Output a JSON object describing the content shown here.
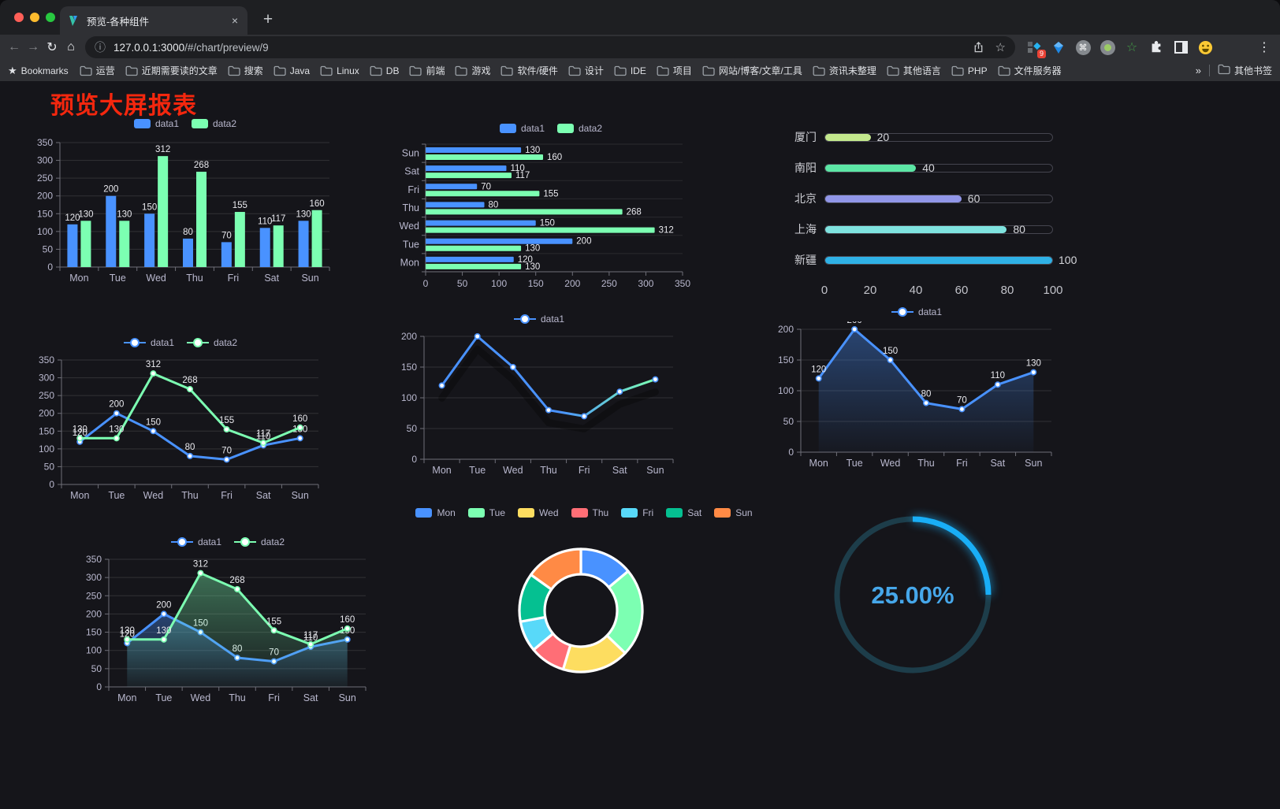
{
  "browser": {
    "tab_title": "预览-各种组件",
    "url_host": "127.0.0.1:3000",
    "url_path": "/#/chart/preview/9",
    "extension_badge": "9",
    "bookmarks_label": "Bookmarks",
    "bookmarks": [
      "运营",
      "近期需要读的文章",
      "搜索",
      "Java",
      "Linux",
      "DB",
      "前端",
      "游戏",
      "软件/硬件",
      "设计",
      "IDE",
      "项目",
      "网站/博客/文章/工具",
      "资讯未整理",
      "其他语言",
      "PHP",
      "文件服务器"
    ],
    "other_bookmarks": "其他书签",
    "icons": {
      "back": "←",
      "forward": "→",
      "reload": "↻",
      "home": "⌂",
      "info": "ⓘ",
      "star": "☆",
      "bookmark_star": "★",
      "menu": "⋮",
      "plus": "+",
      "close": "×",
      "overflow": "»",
      "cmd": "⌘",
      "ext_star": "☆"
    }
  },
  "page": {
    "title": "预览大屏报表",
    "title_color": "#f4270e"
  },
  "chart_data": [
    {
      "type": "bar",
      "categories": [
        "Mon",
        "Tue",
        "Wed",
        "Thu",
        "Fri",
        "Sat",
        "Sun"
      ],
      "series": [
        {
          "name": "data1",
          "color": "#4992ff",
          "values": [
            120,
            200,
            150,
            80,
            70,
            110,
            130
          ]
        },
        {
          "name": "data2",
          "color": "#7cffb2",
          "values": [
            130,
            130,
            312,
            268,
            155,
            117,
            160
          ]
        }
      ],
      "ylim": [
        0,
        350
      ],
      "ytick": 50,
      "value_labels": true,
      "legend_position": "top",
      "grid": true
    },
    {
      "type": "bar-horizontal",
      "categories": [
        "Mon",
        "Tue",
        "Wed",
        "Thu",
        "Fri",
        "Sat",
        "Sun"
      ],
      "series": [
        {
          "name": "data1",
          "color": "#4992ff",
          "values": [
            120,
            200,
            150,
            80,
            70,
            110,
            130
          ]
        },
        {
          "name": "data2",
          "color": "#7cffb2",
          "values": [
            130,
            130,
            312,
            268,
            155,
            117,
            160
          ]
        }
      ],
      "xlim": [
        0,
        350
      ],
      "xtick": 50,
      "value_labels": true,
      "legend_position": "top",
      "display_order_top_to_bottom": [
        "Sun",
        "Sat",
        "Fri",
        "Thu",
        "Wed",
        "Tue",
        "Mon"
      ]
    },
    {
      "type": "progress",
      "xlim": [
        0,
        100
      ],
      "xticks": [
        0,
        20,
        40,
        60,
        80,
        100
      ],
      "items": [
        {
          "label": "厦门",
          "value": 20,
          "color": "#c3e88d"
        },
        {
          "label": "南阳",
          "value": 40,
          "color": "#5ce6a5"
        },
        {
          "label": "北京",
          "value": 60,
          "color": "#9196e8"
        },
        {
          "label": "上海",
          "value": 80,
          "color": "#7fe3df"
        },
        {
          "label": "新疆",
          "value": 100,
          "color": "#2fb1e6"
        }
      ]
    },
    {
      "type": "line",
      "categories": [
        "Mon",
        "Tue",
        "Wed",
        "Thu",
        "Fri",
        "Sat",
        "Sun"
      ],
      "series": [
        {
          "name": "data1",
          "color": "#4992ff",
          "values": [
            120,
            200,
            150,
            80,
            70,
            110,
            130
          ]
        },
        {
          "name": "data2",
          "color": "#7cffb2",
          "values": [
            130,
            130,
            312,
            268,
            155,
            117,
            160
          ]
        }
      ],
      "ylim": [
        0,
        350
      ],
      "ytick": 50,
      "value_labels": true,
      "legend_position": "top"
    },
    {
      "type": "line",
      "categories": [
        "Mon",
        "Tue",
        "Wed",
        "Thu",
        "Fri",
        "Sat",
        "Sun"
      ],
      "series": [
        {
          "name": "data1",
          "color": "#4992ff",
          "values": [
            120,
            200,
            150,
            80,
            70,
            110,
            130
          ],
          "gradient": [
            "#4992ff",
            "#7cffb2"
          ]
        }
      ],
      "ylim": [
        0,
        200
      ],
      "ytick": 50,
      "value_labels": false,
      "shadow": true,
      "legend_position": "top"
    },
    {
      "type": "line",
      "categories": [
        "Mon",
        "Tue",
        "Wed",
        "Thu",
        "Fri",
        "Sat",
        "Sun"
      ],
      "series": [
        {
          "name": "data1",
          "color": "#4992ff",
          "values": [
            120,
            200,
            150,
            80,
            70,
            110,
            130
          ],
          "area": true
        }
      ],
      "ylim": [
        0,
        200
      ],
      "ytick": 50,
      "value_labels": true,
      "legend_position": "top"
    },
    {
      "type": "line",
      "categories": [
        "Mon",
        "Tue",
        "Wed",
        "Thu",
        "Fri",
        "Sat",
        "Sun"
      ],
      "series": [
        {
          "name": "data1",
          "color": "#4992ff",
          "values": [
            120,
            200,
            150,
            80,
            70,
            110,
            130
          ],
          "area": true
        },
        {
          "name": "data2",
          "color": "#7cffb2",
          "values": [
            130,
            130,
            312,
            268,
            155,
            117,
            160
          ],
          "area": true
        }
      ],
      "ylim": [
        0,
        350
      ],
      "ytick": 50,
      "value_labels": true,
      "legend_position": "top"
    },
    {
      "type": "pie",
      "categories": [
        "Mon",
        "Tue",
        "Wed",
        "Thu",
        "Fri",
        "Sat",
        "Sun"
      ],
      "values": [
        120,
        200,
        150,
        80,
        70,
        110,
        130
      ],
      "colors": [
        "#4992ff",
        "#7cffb2",
        "#fddd60",
        "#ff6e76",
        "#58d9f9",
        "#05c091",
        "#ff8a45"
      ],
      "inner_radius_ratio": 0.59,
      "legend_position": "top",
      "start_angle_deg_from_top": 0
    },
    {
      "type": "gauge",
      "value": 25,
      "label": "25.00%",
      "color": "#19aef6",
      "track_color": "#1d3d4a",
      "text_color": "#46a7ea"
    }
  ]
}
